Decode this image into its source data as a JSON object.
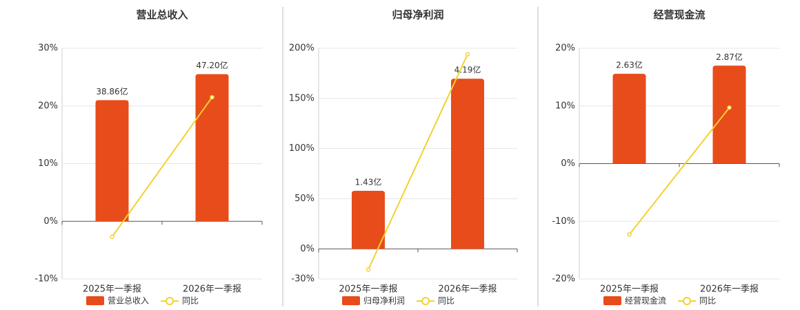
{
  "chart_data": [
    {
      "type": "combo",
      "title": "营业总收入",
      "categories": [
        "2025年一季报",
        "2026年一季报"
      ],
      "ylim": [
        -10,
        30
      ],
      "yticks": [
        {
          "value": -10,
          "label": "-10%"
        },
        {
          "value": 0,
          "label": "0%"
        },
        {
          "value": 10,
          "label": "10%"
        },
        {
          "value": 20,
          "label": "20%"
        },
        {
          "value": 30,
          "label": "30%"
        }
      ],
      "y2lim": [
        -18.5,
        55.5
      ],
      "grid": true,
      "series": [
        {
          "name": "营业总收入",
          "type": "bar",
          "axis": "y2",
          "color": "#e84c1a",
          "values": [
            38.86,
            47.2
          ],
          "value_labels": [
            "38.86亿",
            "47.20亿"
          ]
        },
        {
          "name": "同比",
          "type": "line",
          "color": "#f2d22e",
          "values": [
            -2.7,
            21.5
          ]
        }
      ]
    },
    {
      "type": "combo",
      "title": "归母净利润",
      "categories": [
        "2025年一季报",
        "2026年一季报"
      ],
      "ylim": [
        -30,
        200
      ],
      "yticks": [
        {
          "value": -30,
          "label": "-30%"
        },
        {
          "value": 0,
          "label": "0%"
        },
        {
          "value": 50,
          "label": "50%"
        },
        {
          "value": 100,
          "label": "100%"
        },
        {
          "value": 150,
          "label": "150%"
        },
        {
          "value": 200,
          "label": "200%"
        }
      ],
      "y2lim": [
        -0.74,
        4.94
      ],
      "grid": true,
      "series": [
        {
          "name": "归母净利润",
          "type": "bar",
          "axis": "y2",
          "color": "#e84c1a",
          "values": [
            1.43,
            4.19
          ],
          "value_labels": [
            "1.43亿",
            "4.19亿"
          ]
        },
        {
          "name": "同比",
          "type": "line",
          "color": "#f2d22e",
          "values": [
            -20.6,
            194
          ]
        }
      ]
    },
    {
      "type": "combo",
      "title": "经营现金流",
      "categories": [
        "2025年一季报",
        "2026年一季报"
      ],
      "ylim": [
        -20,
        20
      ],
      "yticks": [
        {
          "value": -20,
          "label": "-20%"
        },
        {
          "value": -10,
          "label": "-10%"
        },
        {
          "value": 0,
          "label": "0%"
        },
        {
          "value": 10,
          "label": "10%"
        },
        {
          "value": 20,
          "label": "20%"
        }
      ],
      "y2lim": [
        -3.38,
        3.38
      ],
      "grid": true,
      "series": [
        {
          "name": "经营现金流",
          "type": "bar",
          "axis": "y2",
          "color": "#e84c1a",
          "values": [
            2.63,
            2.87
          ],
          "value_labels": [
            "2.63亿",
            "2.87亿"
          ]
        },
        {
          "name": "同比",
          "type": "line",
          "color": "#f2d22e",
          "values": [
            -12.3,
            9.7
          ]
        }
      ]
    }
  ]
}
